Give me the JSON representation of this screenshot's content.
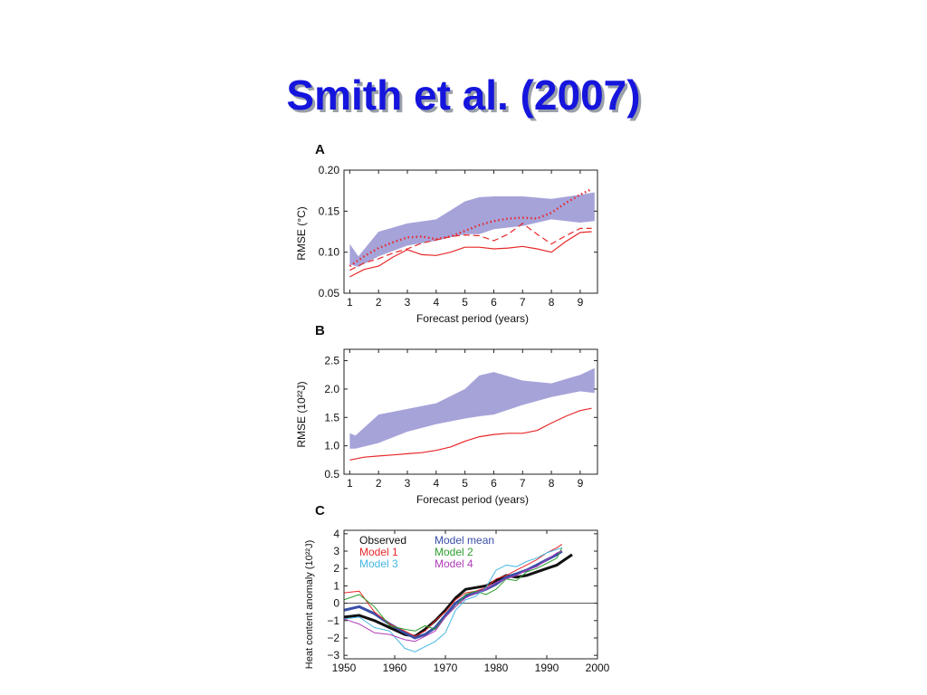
{
  "slide": {
    "title": "Smith et al. (2007)"
  },
  "colors": {
    "title": "#1515dd",
    "band": "#a6a3d9",
    "red": "#e8282a",
    "black": "#111111",
    "blue": "#3a4fa8",
    "green": "#2e9e2e",
    "cyan": "#44b6e0",
    "magenta": "#b03cb8"
  },
  "chart_data": [
    {
      "panel": "A",
      "type": "line",
      "xlabel": "Forecast period (years)",
      "ylabel": "RMSE (°C)",
      "xlim": [
        0.8,
        9.6
      ],
      "ylim": [
        0.05,
        0.2
      ],
      "xticks": [
        "1",
        "2",
        "3",
        "4",
        "5",
        "6",
        "7",
        "8",
        "9"
      ],
      "yticks": [
        "0.05",
        "0.10",
        "0.15",
        "0.20"
      ],
      "band": {
        "x": [
          1,
          1.3,
          2,
          3,
          4,
          5,
          5.5,
          6,
          7,
          8,
          9,
          9.5
        ],
        "upper": [
          0.11,
          0.095,
          0.125,
          0.135,
          0.14,
          0.162,
          0.167,
          0.168,
          0.168,
          0.165,
          0.17,
          0.173
        ],
        "lower": [
          0.085,
          0.082,
          0.095,
          0.108,
          0.114,
          0.122,
          0.122,
          0.128,
          0.132,
          0.14,
          0.136,
          0.138
        ]
      },
      "series": [
        {
          "style": "dotted",
          "x": [
            1,
            1.5,
            2,
            2.5,
            3,
            3.5,
            4,
            4.5,
            5,
            5.5,
            6,
            6.5,
            7,
            7.5,
            8,
            8.5,
            9,
            9.4
          ],
          "y": [
            0.083,
            0.095,
            0.105,
            0.112,
            0.118,
            0.119,
            0.116,
            0.119,
            0.126,
            0.133,
            0.138,
            0.141,
            0.142,
            0.141,
            0.148,
            0.16,
            0.17,
            0.177
          ]
        },
        {
          "style": "solid",
          "x": [
            1,
            1.5,
            2,
            2.5,
            3,
            3.5,
            4,
            4.5,
            5,
            5.5,
            6,
            6.5,
            7,
            7.5,
            8,
            8.5,
            9,
            9.4
          ],
          "y": [
            0.07,
            0.079,
            0.083,
            0.094,
            0.103,
            0.097,
            0.096,
            0.1,
            0.106,
            0.106,
            0.104,
            0.105,
            0.107,
            0.104,
            0.1,
            0.113,
            0.124,
            0.125
          ]
        },
        {
          "style": "dashed",
          "x": [
            1,
            1.5,
            2,
            2.5,
            3,
            3.5,
            4,
            4.5,
            5,
            5.5,
            6,
            6.5,
            7,
            7.5,
            8,
            8.5,
            9,
            9.4
          ],
          "y": [
            0.078,
            0.087,
            0.092,
            0.099,
            0.104,
            0.111,
            0.115,
            0.119,
            0.121,
            0.12,
            0.114,
            0.122,
            0.135,
            0.122,
            0.11,
            0.12,
            0.129,
            0.129
          ]
        }
      ]
    },
    {
      "panel": "B",
      "type": "line",
      "xlabel": "Forecast period (years)",
      "ylabel": "RMSE (10²²J)",
      "xlim": [
        0.8,
        9.6
      ],
      "ylim": [
        0.5,
        2.7
      ],
      "xticks": [
        "1",
        "2",
        "3",
        "4",
        "5",
        "6",
        "7",
        "8",
        "9"
      ],
      "yticks": [
        "0.5",
        "1.0",
        "1.5",
        "2.0",
        "2.5"
      ],
      "band": {
        "x": [
          1,
          1.2,
          2,
          3,
          4,
          5,
          5.5,
          6,
          7,
          8,
          9,
          9.5
        ],
        "upper": [
          1.22,
          1.18,
          1.55,
          1.65,
          1.75,
          2.0,
          2.24,
          2.3,
          2.15,
          2.1,
          2.25,
          2.37
        ],
        "lower": [
          0.95,
          0.95,
          1.05,
          1.25,
          1.38,
          1.48,
          1.52,
          1.55,
          1.72,
          1.86,
          1.96,
          1.93
        ]
      },
      "series": [
        {
          "style": "solid",
          "x": [
            1,
            1.5,
            2,
            2.5,
            3,
            3.5,
            4,
            4.5,
            5,
            5.5,
            6,
            6.5,
            7,
            7.5,
            8,
            8.5,
            9,
            9.4
          ],
          "y": [
            0.75,
            0.8,
            0.82,
            0.84,
            0.86,
            0.88,
            0.92,
            0.98,
            1.08,
            1.16,
            1.2,
            1.22,
            1.22,
            1.27,
            1.4,
            1.52,
            1.62,
            1.66
          ]
        }
      ]
    },
    {
      "panel": "C",
      "type": "line",
      "ylabel": "Heat content anomaly (10²²J)",
      "xlim": [
        1950,
        2000
      ],
      "ylim": [
        -3.2,
        4.2
      ],
      "xticks": [
        "1950",
        "1960",
        "1970",
        "1980",
        "1990",
        "2000"
      ],
      "yticks": [
        "4",
        "3",
        "2",
        "1",
        "0",
        "−1",
        "−2",
        "−3"
      ],
      "series": [
        {
          "name": "Observed",
          "color": "black",
          "x": [
            1950,
            1953,
            1956,
            1959,
            1962,
            1964,
            1966,
            1968,
            1970,
            1972,
            1974,
            1976,
            1978,
            1980,
            1982,
            1984,
            1986,
            1988,
            1990,
            1992,
            1995
          ],
          "y": [
            -0.8,
            -0.7,
            -1.0,
            -1.4,
            -1.8,
            -1.9,
            -1.5,
            -1.0,
            -0.4,
            0.3,
            0.8,
            0.9,
            1.0,
            1.3,
            1.6,
            1.5,
            1.6,
            1.8,
            2.0,
            2.2,
            2.8
          ]
        },
        {
          "name": "Model mean",
          "color": "blue",
          "x": [
            1950,
            1953,
            1956,
            1959,
            1962,
            1964,
            1966,
            1968,
            1970,
            1972,
            1974,
            1976,
            1978,
            1980,
            1982,
            1984,
            1986,
            1988,
            1990,
            1992,
            1993
          ],
          "y": [
            -0.4,
            -0.2,
            -0.6,
            -1.2,
            -1.7,
            -2.0,
            -1.8,
            -1.4,
            -0.7,
            0.0,
            0.4,
            0.6,
            0.8,
            1.1,
            1.5,
            1.7,
            1.9,
            2.2,
            2.5,
            2.8,
            3.0
          ]
        },
        {
          "name": "Model 1",
          "color": "red",
          "x": [
            1950,
            1953,
            1956,
            1959,
            1962,
            1964,
            1966,
            1968,
            1970,
            1972,
            1974,
            1976,
            1978,
            1980,
            1982,
            1984,
            1986,
            1988,
            1990,
            1992,
            1993
          ],
          "y": [
            0.6,
            0.7,
            -0.5,
            -1.2,
            -1.6,
            -1.9,
            -1.6,
            -1.0,
            -0.5,
            0.2,
            0.6,
            0.7,
            0.9,
            1.4,
            1.6,
            1.9,
            2.2,
            2.5,
            2.9,
            3.2,
            3.4
          ]
        },
        {
          "name": "Model 2",
          "color": "green",
          "x": [
            1950,
            1953,
            1956,
            1959,
            1962,
            1964,
            1966,
            1968,
            1970,
            1972,
            1974,
            1976,
            1978,
            1980,
            1982,
            1984,
            1986,
            1988,
            1990,
            1992,
            1993
          ],
          "y": [
            0.2,
            0.5,
            -0.2,
            -1.3,
            -1.5,
            -1.6,
            -1.3,
            -1.5,
            -0.8,
            -0.2,
            0.5,
            0.7,
            0.5,
            0.8,
            1.4,
            1.3,
            1.8,
            2.0,
            2.3,
            2.6,
            3.2
          ]
        },
        {
          "name": "Model 3",
          "color": "cyan",
          "x": [
            1950,
            1953,
            1956,
            1959,
            1962,
            1964,
            1966,
            1968,
            1970,
            1972,
            1974,
            1976,
            1978,
            1980,
            1982,
            1984,
            1986,
            1988,
            1990,
            1992,
            1993
          ],
          "y": [
            -0.9,
            -0.8,
            -1.4,
            -1.6,
            -2.6,
            -2.8,
            -2.5,
            -2.2,
            -1.7,
            -0.4,
            0.2,
            0.4,
            0.9,
            1.9,
            2.2,
            2.1,
            2.4,
            2.6,
            2.9,
            3.1,
            3.2
          ]
        },
        {
          "name": "Model 4",
          "color": "magenta",
          "x": [
            1950,
            1953,
            1956,
            1959,
            1962,
            1964,
            1966,
            1968,
            1970,
            1972,
            1974,
            1976,
            1978,
            1980,
            1982,
            1984,
            1986,
            1988,
            1990,
            1992,
            1993
          ],
          "y": [
            -0.9,
            -1.2,
            -1.7,
            -1.8,
            -2.1,
            -2.2,
            -1.9,
            -1.6,
            -0.8,
            -0.2,
            0.3,
            0.6,
            0.8,
            1.2,
            1.4,
            1.6,
            1.9,
            2.1,
            2.5,
            2.9,
            3.0
          ]
        }
      ]
    }
  ]
}
